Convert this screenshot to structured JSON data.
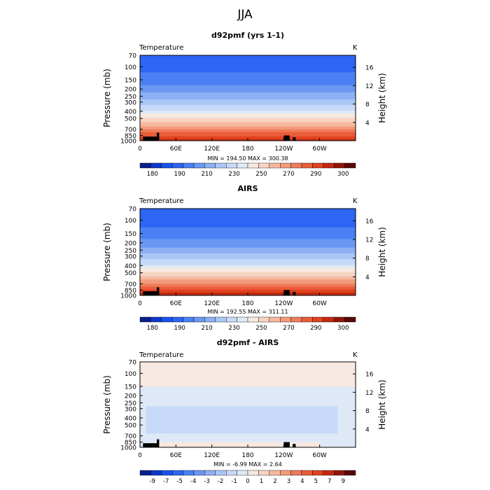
{
  "figure": {
    "title": "JJA"
  },
  "colors": {
    "temp_scale": [
      "#071e8c",
      "#0f37c8",
      "#1a52e8",
      "#2c66f2",
      "#4a80f4",
      "#6a97f2",
      "#8cb0f3",
      "#aac6f5",
      "#c6d9f8",
      "#dfe8f7",
      "#f7e8e1",
      "#f7d4c4",
      "#f5b99f",
      "#f29b7c",
      "#ef7b5a",
      "#ea5c3a",
      "#e0421f",
      "#c22a10",
      "#8e1608",
      "#5a0805"
    ],
    "diff_scale": [
      "#071e8c",
      "#0f37c8",
      "#1a52e8",
      "#2c66f2",
      "#4a80f4",
      "#6a97f2",
      "#8cb0f3",
      "#aac6f5",
      "#c6d9f8",
      "#dfe8f7",
      "#f7e8e1",
      "#f7d4c4",
      "#f5b99f",
      "#f29b7c",
      "#ef7b5a",
      "#ea5c3a",
      "#e0421f",
      "#c22a10",
      "#8e1608",
      "#5a0805"
    ]
  },
  "chart_data": [
    {
      "type": "heatmap",
      "title": "d92pmf (yrs 1-1)",
      "variable": "Temperature",
      "units": "K",
      "ylabel": "Pressure (mb)",
      "ylabel_right": "Height (km)",
      "x_ticks": [
        "0",
        "60E",
        "120E",
        "180",
        "120W",
        "60W"
      ],
      "x_tick_values": [
        0,
        60,
        120,
        180,
        240,
        300
      ],
      "xlim": [
        0,
        360
      ],
      "y_ticks": [
        "70",
        "100",
        "150",
        "200",
        "250",
        "300",
        "400",
        "500",
        "700",
        "850",
        "1000"
      ],
      "y_tick_values": [
        70,
        100,
        150,
        200,
        250,
        300,
        400,
        500,
        700,
        850,
        1000
      ],
      "ylim": [
        70,
        1000
      ],
      "height_ticks": [
        "4",
        "8",
        "12",
        "16"
      ],
      "height_tick_values": [
        4,
        8,
        12,
        16
      ],
      "stats": "MIN = 194.50   MAX = 300.38",
      "min": 194.5,
      "max": 300.38,
      "colorbar_labels": [
        "180",
        "190",
        "210",
        "230",
        "250",
        "270",
        "290",
        "300"
      ],
      "profile": {
        "pressure": [
          70,
          100,
          150,
          200,
          250,
          300,
          350,
          400,
          500,
          600,
          700,
          850,
          1000
        ],
        "value": [
          196,
          197,
          205,
          215,
          225,
          235,
          245,
          252,
          260,
          268,
          275,
          284,
          294
        ]
      }
    },
    {
      "type": "heatmap",
      "title": "AIRS",
      "variable": "Temperature",
      "units": "K",
      "ylabel": "Pressure (mb)",
      "ylabel_right": "Height (km)",
      "x_ticks": [
        "0",
        "60E",
        "120E",
        "180",
        "120W",
        "60W"
      ],
      "x_tick_values": [
        0,
        60,
        120,
        180,
        240,
        300
      ],
      "xlim": [
        0,
        360
      ],
      "y_ticks": [
        "70",
        "100",
        "150",
        "200",
        "250",
        "300",
        "400",
        "500",
        "700",
        "850",
        "1000"
      ],
      "y_tick_values": [
        70,
        100,
        150,
        200,
        250,
        300,
        400,
        500,
        700,
        850,
        1000
      ],
      "ylim": [
        70,
        1000
      ],
      "height_ticks": [
        "4",
        "8",
        "12",
        "16"
      ],
      "height_tick_values": [
        4,
        8,
        12,
        16
      ],
      "stats": "MIN = 192.55   MAX = 311.11",
      "min": 192.55,
      "max": 311.11,
      "colorbar_labels": [
        "180",
        "190",
        "210",
        "230",
        "250",
        "270",
        "290",
        "300"
      ],
      "profile": {
        "pressure": [
          70,
          100,
          150,
          200,
          250,
          300,
          350,
          400,
          500,
          600,
          700,
          850,
          1000
        ],
        "value": [
          194,
          196,
          204,
          214,
          225,
          235,
          245,
          252,
          260,
          268,
          276,
          286,
          296
        ]
      }
    },
    {
      "type": "heatmap",
      "title": "d92pmf - AIRS",
      "variable": "Temperature",
      "units": "K",
      "ylabel": "Pressure (mb)",
      "ylabel_right": "Height (km)",
      "x_ticks": [
        "0",
        "60E",
        "120E",
        "180",
        "120W",
        "60W"
      ],
      "x_tick_values": [
        0,
        60,
        120,
        180,
        240,
        300
      ],
      "xlim": [
        0,
        360
      ],
      "y_ticks": [
        "70",
        "100",
        "150",
        "200",
        "250",
        "300",
        "400",
        "500",
        "700",
        "850",
        "1000"
      ],
      "y_tick_values": [
        70,
        100,
        150,
        200,
        250,
        300,
        400,
        500,
        700,
        850,
        1000
      ],
      "ylim": [
        70,
        1000
      ],
      "height_ticks": [
        "4",
        "8",
        "12",
        "16"
      ],
      "height_tick_values": [
        4,
        8,
        12,
        16
      ],
      "stats": "MIN =  -6.99   MAX =    2.64",
      "min": -6.99,
      "max": 2.64,
      "colorbar_labels": [
        "-9",
        "-7",
        "-5",
        "-4",
        "-3",
        "-2",
        "-1",
        "0",
        "1",
        "2",
        "3",
        "4",
        "5",
        "7",
        "9"
      ],
      "regions": [
        {
          "p_top": 70,
          "p_bottom": 90,
          "lon_start": 0,
          "lon_end": 360,
          "value": 0.5
        },
        {
          "p_top": 90,
          "p_bottom": 150,
          "lon_start": 0,
          "lon_end": 360,
          "value": 0.4
        },
        {
          "p_top": 150,
          "p_bottom": 1000,
          "lon_start": 0,
          "lon_end": 360,
          "value": -0.5
        },
        {
          "p_top": 280,
          "p_bottom": 650,
          "lon_start": 10,
          "lon_end": 330,
          "value": -1.5
        },
        {
          "p_top": 850,
          "p_bottom": 1000,
          "lon_start": 25,
          "lon_end": 300,
          "value": 0.4
        }
      ]
    }
  ]
}
